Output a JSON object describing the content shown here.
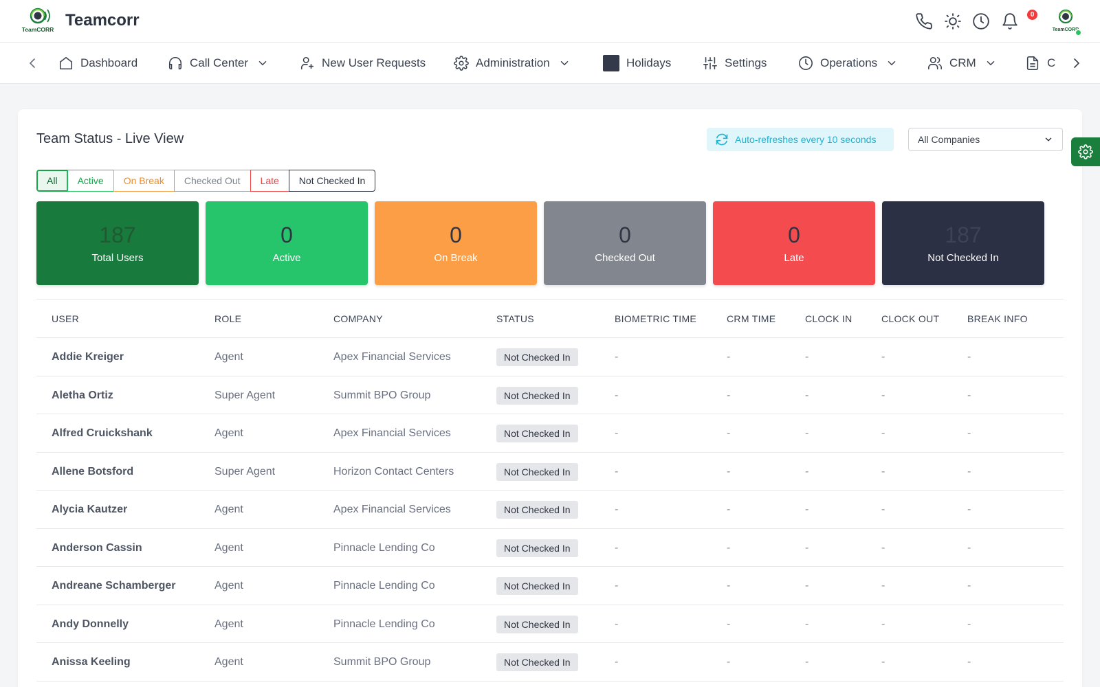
{
  "app": {
    "brand": "Teamcorr",
    "logo_text": "TeamCORR"
  },
  "header": {
    "icons": [
      "phone-icon",
      "sun-icon",
      "clock-icon",
      "bell-icon"
    ],
    "notification_count": "0"
  },
  "nav": {
    "items": [
      {
        "label": "Dashboard",
        "icon": "home-icon",
        "dropdown": false
      },
      {
        "label": "Call Center",
        "icon": "headset-icon",
        "dropdown": true
      },
      {
        "label": "New User Requests",
        "icon": "user-plus-icon",
        "dropdown": false
      },
      {
        "label": "Administration",
        "icon": "gear-icon",
        "dropdown": true
      },
      {
        "label": "Holidays",
        "icon": "square-icon",
        "dropdown": false
      },
      {
        "label": "Settings",
        "icon": "sliders-icon",
        "dropdown": false
      },
      {
        "label": "Operations",
        "icon": "clock-icon",
        "dropdown": true
      },
      {
        "label": "CRM",
        "icon": "users-icon",
        "dropdown": true
      },
      {
        "label": "C",
        "icon": "document-icon",
        "dropdown": false
      }
    ]
  },
  "page": {
    "title": "Team Status - Live View",
    "refresh_note": "Auto-refreshes every 10 seconds",
    "company_filter": "All Companies"
  },
  "filters": [
    "All",
    "Active",
    "On Break",
    "Checked Out",
    "Late",
    "Not Checked In"
  ],
  "stats": [
    {
      "value": "187",
      "label": "Total Users",
      "bg": "#187a3d",
      "num_color": "#1f5a32"
    },
    {
      "value": "0",
      "label": "Active",
      "bg": "#27c56b",
      "num_color": "#2f3542"
    },
    {
      "value": "0",
      "label": "On Break",
      "bg": "#fb9e45",
      "num_color": "#2f3542"
    },
    {
      "value": "0",
      "label": "Checked Out",
      "bg": "#82878f",
      "num_color": "#2f3542"
    },
    {
      "value": "0",
      "label": "Late",
      "bg": "#f44b4f",
      "num_color": "#2f3542"
    },
    {
      "value": "187",
      "label": "Not Checked In",
      "bg": "#2c3044",
      "num_color": "#3d4256"
    }
  ],
  "table": {
    "columns": [
      "USER",
      "ROLE",
      "COMPANY",
      "STATUS",
      "BIOMETRIC TIME",
      "CRM TIME",
      "CLOCK IN",
      "CLOCK OUT",
      "BREAK INFO"
    ],
    "rows": [
      {
        "user": "Addie Kreiger",
        "role": "Agent",
        "company": "Apex Financial Services",
        "status": "Not Checked In",
        "biometric": "-",
        "crm": "-",
        "clock_in": "-",
        "clock_out": "-",
        "break": "-"
      },
      {
        "user": "Aletha Ortiz",
        "role": "Super Agent",
        "company": "Summit BPO Group",
        "status": "Not Checked In",
        "biometric": "-",
        "crm": "-",
        "clock_in": "-",
        "clock_out": "-",
        "break": "-"
      },
      {
        "user": "Alfred Cruickshank",
        "role": "Agent",
        "company": "Apex Financial Services",
        "status": "Not Checked In",
        "biometric": "-",
        "crm": "-",
        "clock_in": "-",
        "clock_out": "-",
        "break": "-"
      },
      {
        "user": "Allene Botsford",
        "role": "Super Agent",
        "company": "Horizon Contact Centers",
        "status": "Not Checked In",
        "biometric": "-",
        "crm": "-",
        "clock_in": "-",
        "clock_out": "-",
        "break": "-"
      },
      {
        "user": "Alycia Kautzer",
        "role": "Agent",
        "company": "Apex Financial Services",
        "status": "Not Checked In",
        "biometric": "-",
        "crm": "-",
        "clock_in": "-",
        "clock_out": "-",
        "break": "-"
      },
      {
        "user": "Anderson Cassin",
        "role": "Agent",
        "company": "Pinnacle Lending Co",
        "status": "Not Checked In",
        "biometric": "-",
        "crm": "-",
        "clock_in": "-",
        "clock_out": "-",
        "break": "-"
      },
      {
        "user": "Andreane Schamberger",
        "role": "Agent",
        "company": "Pinnacle Lending Co",
        "status": "Not Checked In",
        "biometric": "-",
        "crm": "-",
        "clock_in": "-",
        "clock_out": "-",
        "break": "-"
      },
      {
        "user": "Andy Donnelly",
        "role": "Agent",
        "company": "Pinnacle Lending Co",
        "status": "Not Checked In",
        "biometric": "-",
        "crm": "-",
        "clock_in": "-",
        "clock_out": "-",
        "break": "-"
      },
      {
        "user": "Anissa Keeling",
        "role": "Agent",
        "company": "Summit BPO Group",
        "status": "Not Checked In",
        "biometric": "-",
        "crm": "-",
        "clock_in": "-",
        "clock_out": "-",
        "break": "-"
      }
    ]
  }
}
